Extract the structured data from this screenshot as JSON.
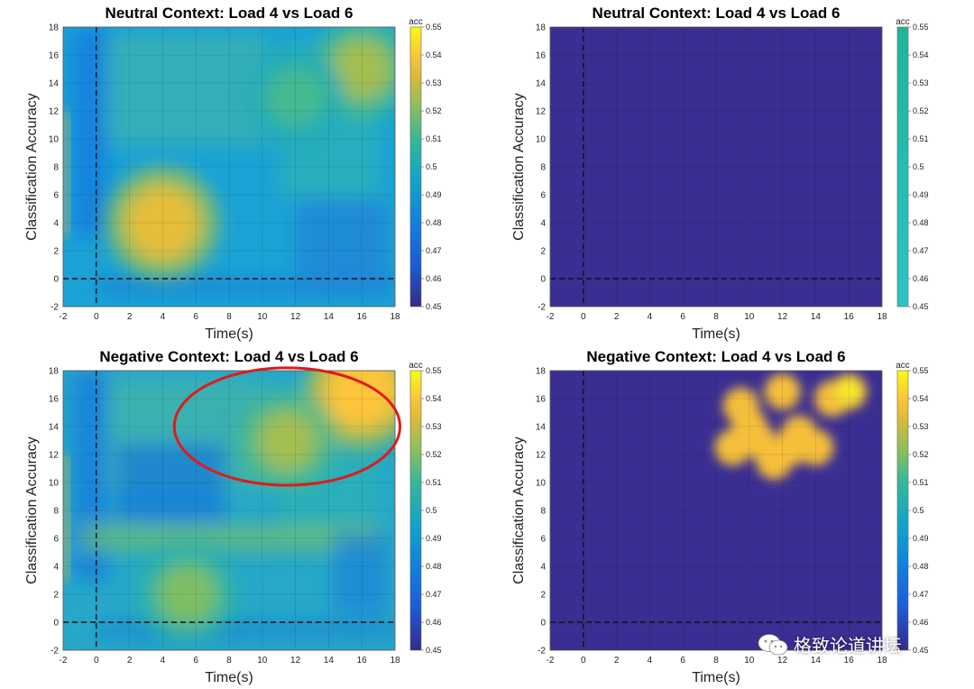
{
  "colorbar_ticks": [
    "0.45",
    "0.46",
    "0.47",
    "0.48",
    "0.49",
    "0.5",
    "0.51",
    "0.52",
    "0.53",
    "0.54",
    "0.55"
  ],
  "colorbar_label": "acc",
  "watermark": {
    "text": "格致论道讲坛",
    "icon": "wechat-icon"
  },
  "chart_data": [
    {
      "type": "heatmap",
      "title": "Neutral Context: Load 4 vs Load 6",
      "xlabel": "Time(s)",
      "ylabel": "Classification Accuracy",
      "xlim": [
        -2,
        18
      ],
      "ylim": [
        -2,
        18
      ],
      "xticks": [
        -2,
        0,
        2,
        4,
        6,
        8,
        10,
        12,
        14,
        16,
        18
      ],
      "yticks": [
        -2,
        0,
        2,
        4,
        6,
        8,
        10,
        12,
        14,
        16,
        18
      ],
      "clim": [
        0.45,
        0.55
      ],
      "colormap": "parula",
      "grid": true,
      "reference_lines": {
        "x": 0,
        "y": 0,
        "style": "dashed"
      },
      "hotspots": [
        {
          "x": 4,
          "y": 4,
          "value": 0.535
        },
        {
          "x": 16,
          "y": 15,
          "value": 0.525
        },
        {
          "x": 12,
          "y": 13,
          "value": 0.512
        }
      ]
    },
    {
      "type": "heatmap",
      "title": "Neutral Context: Load 4 vs Load 6",
      "xlabel": "Time(s)",
      "ylabel": "Classification Accuracy",
      "xlim": [
        -2,
        18
      ],
      "ylim": [
        -2,
        18
      ],
      "xticks": [
        -2,
        0,
        2,
        4,
        6,
        8,
        10,
        12,
        14,
        16,
        18
      ],
      "yticks": [
        -2,
        0,
        2,
        4,
        6,
        8,
        10,
        12,
        14,
        16,
        18
      ],
      "clim": [
        0.45,
        0.55
      ],
      "colormap": "parula",
      "grid": true,
      "reference_lines": {
        "x": 0,
        "y": 0,
        "style": "dashed"
      },
      "note_values": "all masked (no significant cluster)"
    },
    {
      "type": "heatmap",
      "title": "Negative Context: Load 4 vs Load 6",
      "xlabel": "Time(s)",
      "ylabel": "Classification Accuracy",
      "xlim": [
        -2,
        18
      ],
      "ylim": [
        -2,
        18
      ],
      "xticks": [
        -2,
        0,
        2,
        4,
        6,
        8,
        10,
        12,
        14,
        16,
        18
      ],
      "yticks": [
        -2,
        0,
        2,
        4,
        6,
        8,
        10,
        12,
        14,
        16,
        18
      ],
      "clim": [
        0.45,
        0.55
      ],
      "colormap": "parula",
      "grid": true,
      "reference_lines": {
        "x": 0,
        "y": 0,
        "style": "dashed"
      },
      "hotspots": [
        {
          "x": 16,
          "y": 16.5,
          "value": 0.54
        },
        {
          "x": 11.5,
          "y": 13,
          "value": 0.525
        },
        {
          "x": 5.5,
          "y": 2,
          "value": 0.52
        }
      ],
      "highlight_ellipse": {
        "cx": 11.5,
        "cy": 14,
        "rx": 6.8,
        "ry": 4.2,
        "color": "#e01a1a"
      }
    },
    {
      "type": "heatmap",
      "title": "Negative Context: Load 4 vs Load 6",
      "xlabel": "Time(s)",
      "ylabel": "Classification Accuracy",
      "xlim": [
        -2,
        18
      ],
      "ylim": [
        -2,
        18
      ],
      "xticks": [
        -2,
        0,
        2,
        4,
        6,
        8,
        10,
        12,
        14,
        16,
        18
      ],
      "yticks": [
        -2,
        0,
        2,
        4,
        6,
        8,
        10,
        12,
        14,
        16,
        18
      ],
      "clim": [
        0.45,
        0.55
      ],
      "colormap": "parula",
      "grid": true,
      "reference_lines": {
        "x": 0,
        "y": 0,
        "style": "dashed"
      },
      "significant_cluster": [
        {
          "x": 9.5,
          "y": 15.5
        },
        {
          "x": 12,
          "y": 16.5
        },
        {
          "x": 15,
          "y": 16
        },
        {
          "x": 16,
          "y": 16.5
        },
        {
          "x": 10.5,
          "y": 13
        },
        {
          "x": 12.5,
          "y": 12.5
        },
        {
          "x": 13,
          "y": 13.5
        },
        {
          "x": 11.5,
          "y": 11.5
        },
        {
          "x": 9,
          "y": 12.5
        },
        {
          "x": 14,
          "y": 12.5
        },
        {
          "x": 10,
          "y": 14
        }
      ]
    }
  ]
}
